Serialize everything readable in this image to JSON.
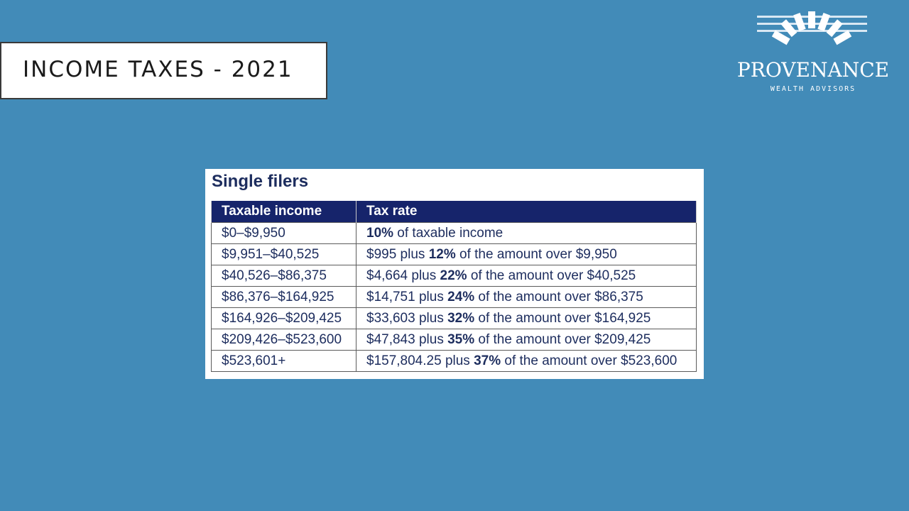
{
  "slide": {
    "title": "INCOME TAXES - 2021"
  },
  "logo": {
    "name": "PROVENANCE",
    "subtitle": "WEALTH ADVISORS",
    "icon": "sunburst-logo-icon"
  },
  "table": {
    "heading": "Single filers",
    "columns": [
      "Taxable income",
      "Tax rate"
    ],
    "rows": [
      {
        "income": "$0–$9,950",
        "pre": "",
        "rate": "10%",
        "post": " of taxable income"
      },
      {
        "income": "$9,951–$40,525",
        "pre": "$995 plus ",
        "rate": "12%",
        "post": " of the amount over $9,950"
      },
      {
        "income": "$40,526–$86,375",
        "pre": "$4,664 plus ",
        "rate": "22%",
        "post": " of the amount over $40,525"
      },
      {
        "income": "$86,376–$164,925",
        "pre": "$14,751 plus ",
        "rate": "24%",
        "post": " of the amount over $86,375"
      },
      {
        "income": "$164,926–$209,425",
        "pre": "$33,603 plus ",
        "rate": "32%",
        "post": " of the amount over $164,925"
      },
      {
        "income": "$209,426–$523,600",
        "pre": "$47,843 plus ",
        "rate": "35%",
        "post": " of the amount over $209,425"
      },
      {
        "income": "$523,601+",
        "pre": "$157,804.25 plus ",
        "rate": "37%",
        "post": " of the amount over $523,600"
      }
    ]
  },
  "colors": {
    "background": "#428bb8",
    "header": "#16246b",
    "text": "#1d2d5e"
  }
}
